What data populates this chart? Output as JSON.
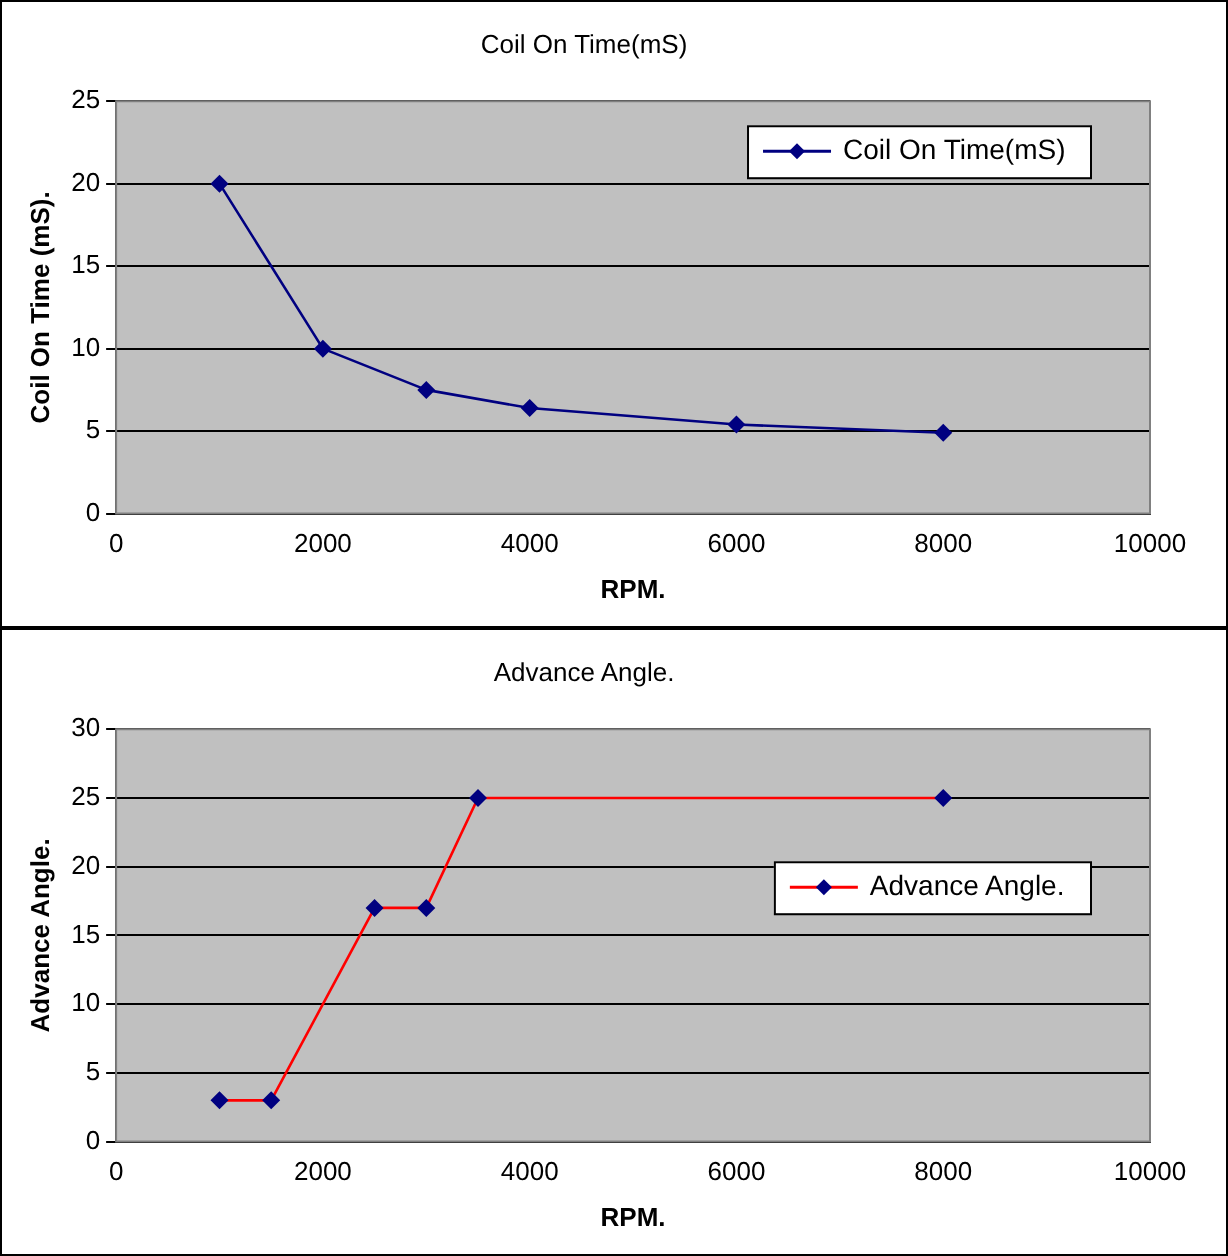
{
  "chart_data": [
    {
      "type": "line",
      "title": "Coil On Time(mS)",
      "xlabel": "RPM.",
      "ylabel": "Coil On Time (mS).",
      "x": [
        1000,
        2000,
        3000,
        4000,
        6000,
        8000
      ],
      "series": [
        {
          "name": "Coil On Time(mS)",
          "color": "#000080",
          "values": [
            20,
            10,
            7.5,
            6.4,
            5.4,
            4.9
          ]
        }
      ],
      "xlim": [
        0,
        10000
      ],
      "xticks": [
        0,
        2000,
        4000,
        6000,
        8000,
        10000
      ],
      "ylim": [
        0,
        25
      ],
      "yticks": [
        0,
        5,
        10,
        15,
        20,
        25
      ],
      "grid": "y",
      "legend": "top right",
      "marker": "diamond",
      "line_style": "solid"
    },
    {
      "type": "line",
      "title": "Advance Angle.",
      "xlabel": "RPM.",
      "ylabel": "Advance Angle.",
      "x": [
        1000,
        1500,
        2500,
        3000,
        3500,
        8000
      ],
      "series": [
        {
          "name": "Advance Angle.",
          "color": "#ff0000",
          "values": [
            3,
            3,
            17,
            17,
            25,
            25
          ]
        }
      ],
      "xlim": [
        0,
        10000
      ],
      "xticks": [
        0,
        2000,
        4000,
        6000,
        8000,
        10000
      ],
      "ylim": [
        0,
        30
      ],
      "yticks": [
        0,
        5,
        10,
        15,
        20,
        25,
        30
      ],
      "grid": "y",
      "legend": "right",
      "marker": "diamond",
      "line_style": "solid"
    }
  ]
}
